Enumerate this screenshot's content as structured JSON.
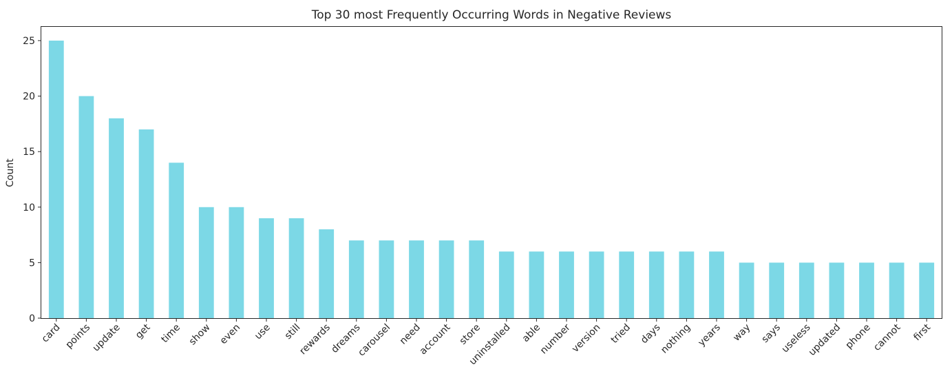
{
  "chart_data": {
    "type": "bar",
    "title": "Top 30 most Frequently Occurring Words in Negative Reviews",
    "xlabel": "",
    "ylabel": "Count",
    "ylim": [
      0,
      26.3
    ],
    "yticks": [
      0,
      5,
      10,
      15,
      20,
      25
    ],
    "grid": false,
    "legend": "none",
    "bar_color": "#7cd8e6",
    "categories": [
      "card",
      "points",
      "update",
      "get",
      "time",
      "show",
      "even",
      "use",
      "still",
      "rewards",
      "dreams",
      "carousel",
      "need",
      "account",
      "store",
      "uninstalled",
      "able",
      "number",
      "version",
      "tried",
      "days",
      "nothing",
      "years",
      "way",
      "says",
      "useless",
      "updated",
      "phone",
      "cannot",
      "first"
    ],
    "values": [
      25,
      20,
      18,
      17,
      14,
      10,
      10,
      9,
      9,
      8,
      7,
      7,
      7,
      7,
      7,
      6,
      6,
      6,
      6,
      6,
      6,
      6,
      6,
      5,
      5,
      5,
      5,
      5,
      5,
      5
    ]
  }
}
